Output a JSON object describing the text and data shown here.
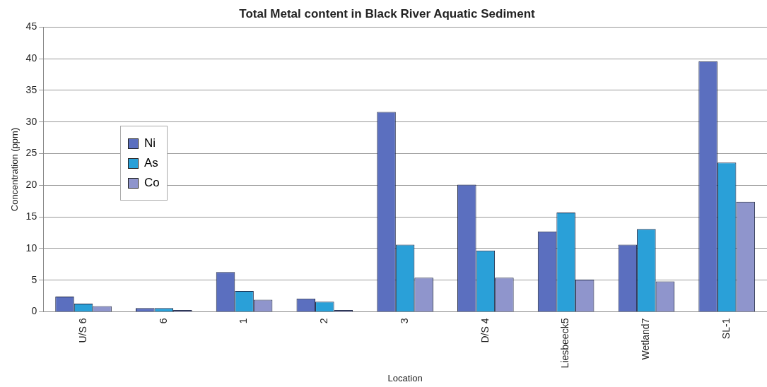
{
  "chart_data": {
    "type": "bar",
    "title": "Total Metal content in Black River Aquatic Sediment",
    "xlabel": "Location",
    "ylabel": "Concentration (ppm)",
    "categories": [
      "U/S 6",
      "6",
      "1",
      "2",
      "3",
      "D/S 4",
      "Liesbeeck5",
      "Wetland7",
      "SL-1"
    ],
    "series": [
      {
        "name": "Ni",
        "color": "#5b6fbf",
        "values": [
          2.4,
          0.6,
          6.3,
          2.1,
          31.6,
          20.1,
          12.7,
          10.6,
          39.6
        ]
      },
      {
        "name": "As",
        "color": "#2aa0d8",
        "values": [
          1.3,
          0.6,
          3.3,
          1.6,
          10.6,
          9.7,
          15.7,
          13.1,
          23.6
        ]
      },
      {
        "name": "Co",
        "color": "#8f95cc",
        "values": [
          0.9,
          0.3,
          1.9,
          0.3,
          5.4,
          5.4,
          5.1,
          4.8,
          17.4
        ]
      }
    ],
    "ylim": [
      0,
      45
    ],
    "yticks": [
      0,
      5,
      10,
      15,
      20,
      25,
      30,
      35,
      40,
      45
    ],
    "grid": "y",
    "legend": "left"
  }
}
